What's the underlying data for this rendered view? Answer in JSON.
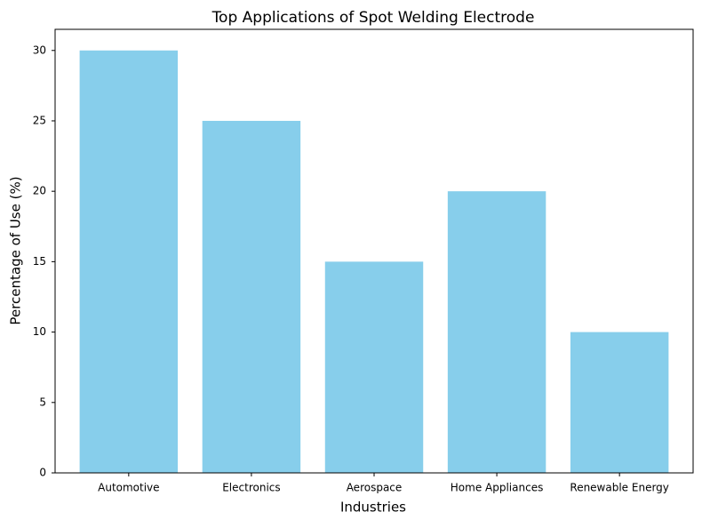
{
  "chart_data": {
    "type": "bar",
    "title": "Top Applications of Spot Welding Electrode",
    "x_label": "Industries",
    "y_label": "Percentage of Use (%)",
    "categories": [
      "Automotive",
      "Electronics",
      "Aerospace",
      "Home Appliances",
      "Renewable Energy"
    ],
    "values": [
      30,
      25,
      15,
      20,
      10
    ],
    "color": "#87ceeb",
    "ylim": [
      0,
      31.5
    ],
    "yticks": [
      0,
      5,
      10,
      15,
      20,
      25,
      30
    ],
    "grid": false
  }
}
